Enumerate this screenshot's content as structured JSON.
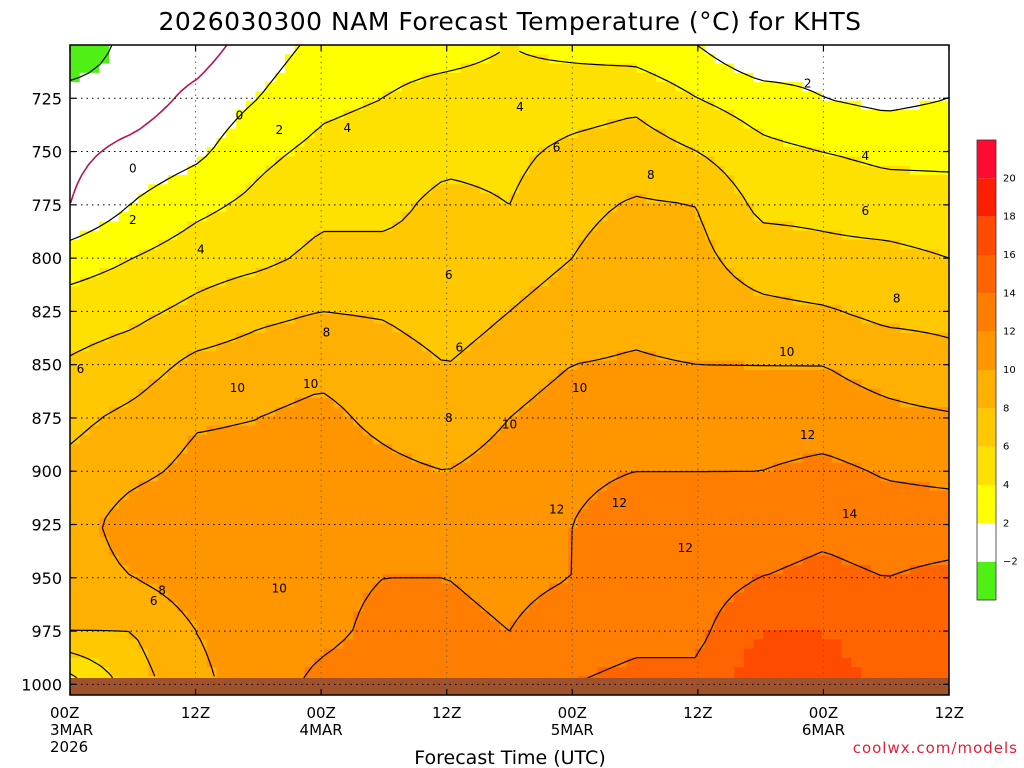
{
  "chart_data": {
    "type": "heatmap",
    "title": "2026030300 NAM Forecast Temperature (°C) for KHTS",
    "xlabel": "Forecast Time (UTC)",
    "ylabel": "",
    "y_scale": "pressure",
    "y_range": [
      1005,
      700
    ],
    "y_ticks": [
      {
        "value": 725,
        "label": "725"
      },
      {
        "value": 750,
        "label": "750"
      },
      {
        "value": 775,
        "label": "775"
      },
      {
        "value": 800,
        "label": "800"
      },
      {
        "value": 825,
        "label": "825"
      },
      {
        "value": 850,
        "label": "850"
      },
      {
        "value": 875,
        "label": "875"
      },
      {
        "value": 900,
        "label": "900"
      },
      {
        "value": 925,
        "label": "925"
      },
      {
        "value": 950,
        "label": "950"
      },
      {
        "value": 975,
        "label": "975"
      },
      {
        "value": 1000,
        "label": "1000"
      }
    ],
    "x_range": [
      0,
      84
    ],
    "x_ticks": [
      {
        "hour": 0,
        "label": "00Z",
        "date": "3MAR",
        "year": "2026"
      },
      {
        "hour": 12,
        "label": "12Z",
        "date": "",
        "year": ""
      },
      {
        "hour": 24,
        "label": "00Z",
        "date": "4MAR",
        "year": ""
      },
      {
        "hour": 36,
        "label": "12Z",
        "date": "",
        "year": ""
      },
      {
        "hour": 48,
        "label": "00Z",
        "date": "5MAR",
        "year": ""
      },
      {
        "hour": 60,
        "label": "12Z",
        "date": "",
        "year": ""
      },
      {
        "hour": 72,
        "label": "00Z",
        "date": "6MAR",
        "year": ""
      },
      {
        "hour": 84,
        "label": "12Z",
        "date": "",
        "year": ""
      }
    ],
    "grid": true,
    "contour_levels": [
      -2,
      0,
      2,
      4,
      6,
      8,
      10,
      12,
      14
    ],
    "colorbar": [
      {
        "min": -4,
        "max": -2,
        "label": "",
        "color": "#50f016"
      },
      {
        "min": -2,
        "max": 2,
        "label": "−2",
        "color": "#ffffff"
      },
      {
        "min": 2,
        "max": 4,
        "label": "2",
        "color": "#ffff00"
      },
      {
        "min": 4,
        "max": 6,
        "label": "4",
        "color": "#ffe100"
      },
      {
        "min": 6,
        "max": 8,
        "label": "6",
        "color": "#ffc800"
      },
      {
        "min": 8,
        "max": 10,
        "label": "8",
        "color": "#ffb000"
      },
      {
        "min": 10,
        "max": 12,
        "label": "10",
        "color": "#ff9600"
      },
      {
        "min": 12,
        "max": 14,
        "label": "12",
        "color": "#ff7d00"
      },
      {
        "min": 14,
        "max": 16,
        "label": "14",
        "color": "#ff6400"
      },
      {
        "min": 16,
        "max": 18,
        "label": "16",
        "color": "#ff4b00"
      },
      {
        "min": 18,
        "max": 20,
        "label": "18",
        "color": "#ff1e00"
      },
      {
        "min": 20,
        "max": 22,
        "label": "20",
        "color": "#ff0a32"
      }
    ],
    "ground_color": "#a0522d",
    "zero_contour_color": "#b4145a",
    "temperature_profiles": [
      {
        "hour": 0,
        "p": [
          700,
          725,
          750,
          775,
          800,
          825,
          850,
          875,
          900,
          925,
          950,
          975,
          1000
        ],
        "t": [
          -4,
          -1,
          -0.5,
          0,
          3,
          5,
          6.2,
          7.5,
          8.5,
          9,
          9,
          8,
          3
        ]
      },
      {
        "hour": 6,
        "p": [
          700,
          725,
          750,
          775,
          800,
          825,
          850,
          875,
          900,
          925,
          950,
          975,
          1000
        ],
        "t": [
          -1,
          -1,
          0.5,
          2.1,
          4,
          5.5,
          7,
          8.5,
          9.5,
          11,
          10,
          8,
          7
        ]
      },
      {
        "hour": 12,
        "p": [
          700,
          725,
          750,
          775,
          800,
          825,
          850,
          875,
          900,
          925,
          950,
          975,
          1000
        ],
        "t": [
          -1,
          0.5,
          1.5,
          3.5,
          5,
          6.5,
          8.5,
          9.8,
          10.5,
          11.5,
          11,
          10,
          9.5
        ]
      },
      {
        "hour": 18,
        "p": [
          700,
          725,
          750,
          775,
          800,
          825,
          850,
          875,
          900,
          925,
          950,
          975,
          1000
        ],
        "t": [
          1,
          2,
          3.5,
          4.5,
          5.5,
          7.5,
          9,
          10,
          10.5,
          11,
          11,
          11,
          11
        ]
      },
      {
        "hour": 24,
        "p": [
          700,
          725,
          750,
          775,
          800,
          825,
          850,
          875,
          900,
          925,
          950,
          975,
          1000
        ],
        "t": [
          2.5,
          3.5,
          4.5,
          5.5,
          6.5,
          8,
          9.5,
          10.5,
          11,
          11.5,
          11.5,
          11.5,
          12.5
        ]
      },
      {
        "hour": 30,
        "p": [
          700,
          725,
          750,
          775,
          800,
          825,
          850,
          875,
          900,
          925,
          950,
          975,
          1000
        ],
        "t": [
          3.5,
          4,
          5,
          5.5,
          6.5,
          7.8,
          9,
          9.5,
          10.5,
          11.5,
          12,
          12.5,
          13
        ]
      },
      {
        "hour": 36,
        "p": [
          700,
          725,
          750,
          775,
          800,
          825,
          850,
          875,
          900,
          925,
          950,
          975,
          1000
        ],
        "t": [
          3.5,
          4.5,
          5.5,
          6.5,
          6.5,
          7,
          8,
          8.5,
          10,
          11.5,
          12,
          12.5,
          12.5
        ]
      },
      {
        "hour": 42,
        "p": [
          700,
          725,
          750,
          775,
          800,
          825,
          850,
          875,
          900,
          925,
          950,
          975,
          1000
        ],
        "t": [
          4,
          4.5,
          5.5,
          6,
          7,
          8,
          9,
          10,
          11,
          11.5,
          11.5,
          12,
          12.5
        ]
      },
      {
        "hour": 48,
        "p": [
          700,
          725,
          750,
          775,
          800,
          825,
          850,
          875,
          900,
          925,
          950,
          975,
          1000
        ],
        "t": [
          3.5,
          5,
          6.5,
          7.5,
          8,
          9,
          10,
          11,
          11.8,
          12,
          12,
          13,
          14
        ]
      },
      {
        "hour": 54,
        "p": [
          700,
          725,
          750,
          775,
          800,
          825,
          850,
          875,
          900,
          925,
          950,
          975,
          1000
        ],
        "t": [
          3,
          5.5,
          7,
          8.2,
          9,
          9.5,
          10.2,
          11,
          12,
          12.5,
          12.8,
          13.5,
          14.5
        ]
      },
      {
        "hour": 60,
        "p": [
          700,
          725,
          750,
          775,
          800,
          825,
          850,
          875,
          900,
          925,
          950,
          975,
          1000
        ],
        "t": [
          2,
          4,
          6,
          8,
          8.5,
          9,
          10,
          11,
          12,
          12.5,
          13,
          13.5,
          14.5
        ]
      },
      {
        "hour": 66,
        "p": [
          700,
          725,
          750,
          775,
          800,
          825,
          850,
          875,
          900,
          925,
          950,
          975,
          1000
        ],
        "t": [
          0,
          3,
          4.5,
          5.5,
          7,
          8.5,
          10,
          11,
          12,
          13,
          14,
          16,
          17.5
        ]
      },
      {
        "hour": 72,
        "p": [
          700,
          725,
          750,
          775,
          800,
          825,
          850,
          875,
          900,
          925,
          950,
          975,
          1000
        ],
        "t": [
          1,
          2,
          4,
          5.5,
          6.5,
          8.2,
          10,
          11,
          12.5,
          13.5,
          14.5,
          16,
          17
        ]
      },
      {
        "hour": 78,
        "p": [
          700,
          725,
          750,
          775,
          800,
          825,
          850,
          875,
          900,
          925,
          950,
          975,
          1000
        ],
        "t": [
          1,
          1.5,
          3.5,
          5,
          6.5,
          7.5,
          9.2,
          10.5,
          11.8,
          13,
          14,
          15,
          15.5
        ]
      },
      {
        "hour": 84,
        "p": [
          700,
          725,
          750,
          775,
          800,
          825,
          850,
          875,
          900,
          925,
          950,
          975,
          1000
        ],
        "t": [
          1,
          2,
          3.5,
          4.8,
          6,
          7.5,
          8.5,
          10.2,
          11.5,
          13,
          14.5,
          15.5,
          16
        ]
      }
    ],
    "contour_labels": [
      {
        "hour": 16.2,
        "p": 733,
        "text": "0"
      },
      {
        "hour": 6.0,
        "p": 758,
        "text": "0"
      },
      {
        "hour": 20.0,
        "p": 740,
        "text": "2"
      },
      {
        "hour": 6.0,
        "p": 782,
        "text": "2"
      },
      {
        "hour": 12.5,
        "p": 796,
        "text": "4"
      },
      {
        "hour": 26.5,
        "p": 739,
        "text": "4"
      },
      {
        "hour": 43.0,
        "p": 729,
        "text": "4"
      },
      {
        "hour": 76.0,
        "p": 752,
        "text": "4"
      },
      {
        "hour": 70.5,
        "p": 718,
        "text": "2"
      },
      {
        "hour": 46.5,
        "p": 748,
        "text": "6"
      },
      {
        "hour": 36.2,
        "p": 808,
        "text": "6"
      },
      {
        "hour": 37.2,
        "p": 842,
        "text": "6"
      },
      {
        "hour": 1.0,
        "p": 852,
        "text": "6"
      },
      {
        "hour": 8.0,
        "p": 961,
        "text": "6"
      },
      {
        "hour": 76.0,
        "p": 778,
        "text": "6"
      },
      {
        "hour": 55.5,
        "p": 761,
        "text": "8"
      },
      {
        "hour": 24.5,
        "p": 835,
        "text": "8"
      },
      {
        "hour": 36.2,
        "p": 875,
        "text": "8"
      },
      {
        "hour": 8.8,
        "p": 956,
        "text": "8"
      },
      {
        "hour": 79.0,
        "p": 819,
        "text": "8"
      },
      {
        "hour": 16.0,
        "p": 861,
        "text": "10"
      },
      {
        "hour": 23.0,
        "p": 859,
        "text": "10"
      },
      {
        "hour": 42.0,
        "p": 878,
        "text": "10"
      },
      {
        "hour": 48.7,
        "p": 861,
        "text": "10"
      },
      {
        "hour": 20.0,
        "p": 955,
        "text": "10"
      },
      {
        "hour": 68.5,
        "p": 844,
        "text": "10"
      },
      {
        "hour": 46.5,
        "p": 918,
        "text": "12"
      },
      {
        "hour": 52.5,
        "p": 915,
        "text": "12"
      },
      {
        "hour": 58.8,
        "p": 936,
        "text": "12"
      },
      {
        "hour": 70.5,
        "p": 883,
        "text": "12"
      },
      {
        "hour": 74.5,
        "p": 920,
        "text": "14"
      }
    ]
  },
  "credit": "coolwx.com/models"
}
